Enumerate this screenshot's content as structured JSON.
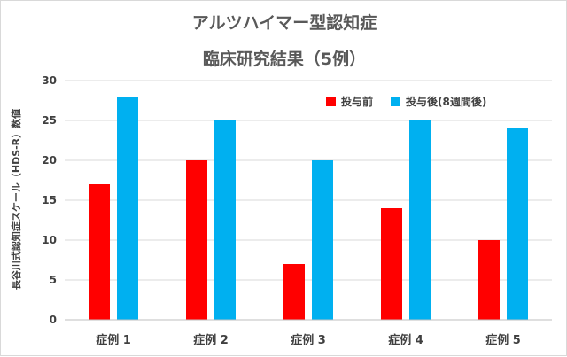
{
  "chart_data": {
    "type": "bar",
    "title_lines": [
      "アルツハイマー型認知症",
      "臨床研究結果（5例）"
    ],
    "xlabel": "",
    "ylabel": "長谷川式認知症スケール（HDS-R）数値",
    "categories": [
      "症例 1",
      "症例 2",
      "症例 3",
      "症例 4",
      "症例 5"
    ],
    "series": [
      {
        "name": "投与前",
        "color": "#ff0000",
        "values": [
          17,
          20,
          7,
          14,
          10
        ]
      },
      {
        "name": "投与後(8週間後)",
        "color": "#00b0f0",
        "values": [
          28,
          25,
          20,
          25,
          24
        ]
      }
    ],
    "ylim": [
      0,
      30
    ],
    "yticks": [
      "0",
      "5",
      "10",
      "15",
      "20",
      "25",
      "30"
    ],
    "grid": true,
    "legend_position": "top-right"
  }
}
